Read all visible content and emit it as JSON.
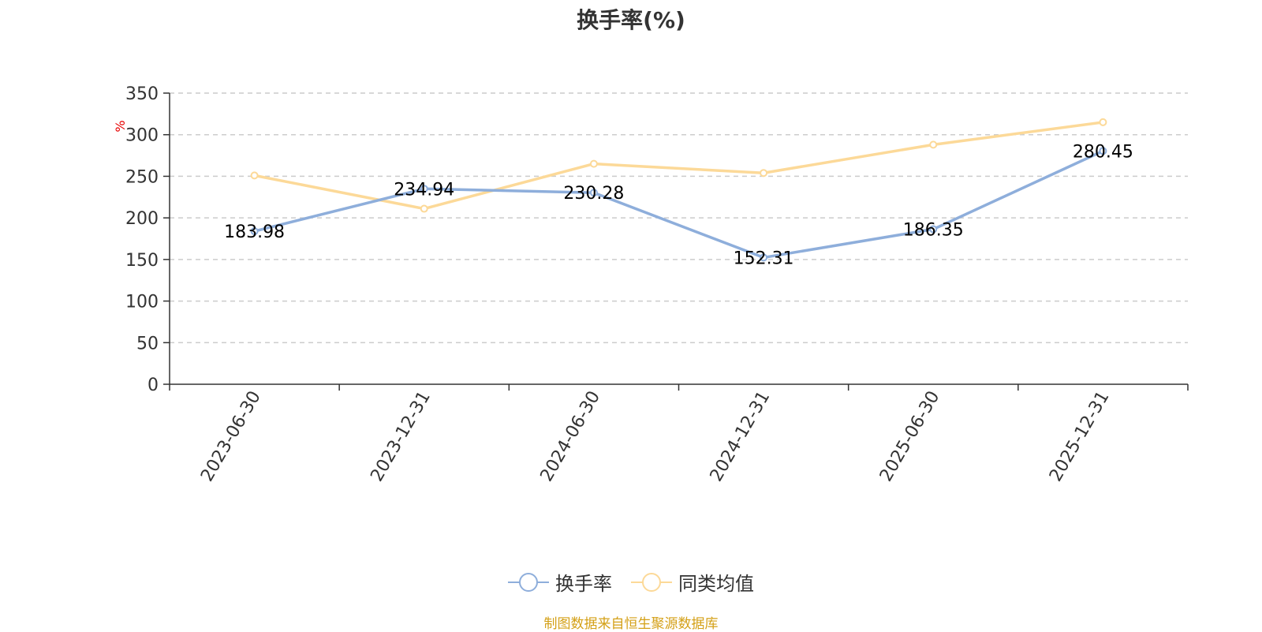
{
  "title": "换手率(%)",
  "source_note": "制图数据来自恒生聚源数据库",
  "chart_data": {
    "type": "line",
    "title": "换手率(%)",
    "ylabel": "%",
    "xlabel": "",
    "categories": [
      "2023-06-30",
      "2023-12-31",
      "2024-06-30",
      "2024-12-31",
      "2025-06-30",
      "2025-12-31"
    ],
    "ylim": [
      0,
      350
    ],
    "yticks": [
      0,
      50,
      100,
      150,
      200,
      250,
      300,
      350
    ],
    "grid": true,
    "legend_position": "bottom",
    "series": [
      {
        "name": "换手率",
        "color": "#8eaedb",
        "values": [
          183.98,
          234.94,
          230.28,
          152.31,
          186.35,
          280.45
        ],
        "labels": [
          "183.98",
          "234.94",
          "230.28",
          "152.31",
          "186.35",
          "280.45"
        ],
        "show_labels": true
      },
      {
        "name": "同类均值",
        "color": "#fcd998",
        "values": [
          251,
          211,
          265,
          254,
          288,
          315
        ],
        "show_labels": false
      }
    ]
  }
}
